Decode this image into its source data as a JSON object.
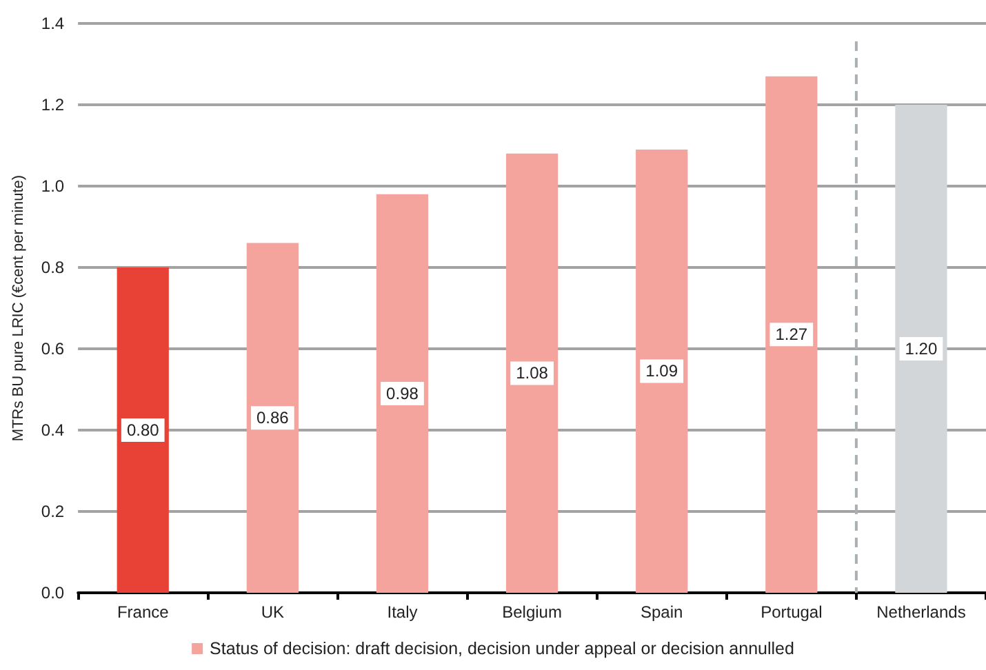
{
  "chart_data": {
    "type": "bar",
    "ylabel": "MTRs BU pure LRIC (€cent per minute)",
    "categories": [
      "France",
      "UK",
      "Italy",
      "Belgium",
      "Spain",
      "Portugal",
      "Netherlands"
    ],
    "series": [
      {
        "name": "Status of decision: draft decision, decision under appeal or decision annulled",
        "color": "#f4a49d",
        "colors": [
          "#e84135",
          "#f4a49d",
          "#f4a49d",
          "#f4a49d",
          "#f4a49d",
          "#f4a49d",
          "#d3d6d8"
        ],
        "values": [
          0.8,
          0.86,
          0.98,
          1.08,
          1.09,
          1.27,
          1.2
        ],
        "value_labels": [
          "0.80",
          "0.86",
          "0.98",
          "1.08",
          "1.09",
          "1.27",
          "1.20"
        ]
      }
    ],
    "ylim": [
      0,
      1.4
    ],
    "yticks": [
      {
        "value": 0,
        "label": "0.0"
      },
      0.2,
      0.4,
      0.6,
      0.8,
      {
        "value": 1,
        "label": "1.0"
      },
      1.2,
      1.4
    ],
    "grid": "y",
    "legend": "bottom"
  }
}
